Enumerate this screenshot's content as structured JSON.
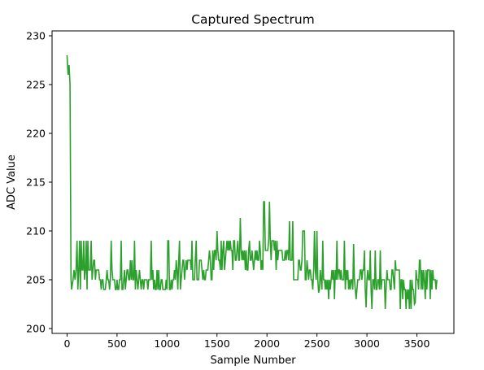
{
  "chart_data": {
    "type": "line",
    "title": "Captured Spectrum",
    "xlabel": "Sample Number",
    "ylabel": "ADC Value",
    "xlim": [
      -150,
      3870
    ],
    "ylim": [
      199.5,
      230.5
    ],
    "xticks": [
      0,
      500,
      1000,
      1500,
      2000,
      2500,
      3000,
      3500
    ],
    "yticks": [
      200,
      205,
      210,
      215,
      220,
      225,
      230
    ],
    "series": [
      {
        "color": "#2ca02c",
        "x": [
          0,
          10,
          20,
          30,
          40,
          45,
          60,
          80,
          100,
          150,
          200,
          250,
          300,
          350,
          400,
          450,
          500,
          550,
          600,
          650,
          700,
          750,
          800,
          850,
          900,
          950,
          1000,
          1050,
          1100,
          1150,
          1200,
          1250,
          1300,
          1350,
          1400,
          1450,
          1500,
          1550,
          1600,
          1650,
          1700,
          1750,
          1800,
          1850,
          1900,
          1950,
          2000,
          2050,
          2100,
          2150,
          2200,
          2250,
          2300,
          2350,
          2400,
          2450,
          2500,
          2550,
          2600,
          2650,
          2700,
          2750,
          2800,
          2850,
          2900,
          2950,
          3000,
          3050,
          3100,
          3150,
          3200,
          3250,
          3300,
          3350,
          3400,
          3450,
          3500,
          3550,
          3600,
          3650,
          3700
        ],
        "y": [
          228,
          226,
          227,
          225,
          205,
          204,
          205,
          205,
          205,
          205,
          205,
          206,
          206,
          205,
          205,
          205,
          205,
          205,
          205,
          206,
          205,
          205,
          205,
          205,
          205,
          205,
          205,
          205,
          206,
          206,
          206,
          206,
          206,
          206,
          206,
          207,
          207,
          208,
          208,
          208,
          208,
          208,
          208,
          208,
          208,
          208,
          209,
          208,
          208,
          208,
          207,
          207,
          206,
          206,
          206,
          205,
          205,
          205,
          205,
          205,
          205,
          205,
          205,
          205,
          205,
          205,
          205,
          205,
          205,
          205,
          205,
          205,
          205,
          204,
          204,
          205,
          205,
          205,
          205,
          205,
          205
        ],
        "envelope_high": [
          228,
          228,
          227,
          225,
          206,
          209,
          209,
          209,
          209,
          209,
          209,
          209,
          209,
          209,
          209,
          209,
          209,
          209,
          209,
          209,
          209,
          209,
          209,
          209,
          209,
          209,
          209,
          209,
          209,
          209,
          209,
          209,
          209,
          210,
          210,
          210,
          210,
          211,
          211,
          211,
          212,
          211,
          212,
          212,
          213,
          213,
          213,
          213,
          213,
          212,
          211,
          211,
          211,
          210,
          210,
          210,
          210,
          209,
          209,
          209,
          209,
          209,
          209,
          209,
          208,
          208,
          208,
          208,
          208,
          208,
          208,
          207,
          207,
          207,
          207,
          207,
          207,
          207,
          207,
          207,
          205
        ],
        "envelope_low": [
          226,
          226,
          226,
          224,
          204,
          204,
          204,
          204,
          204,
          204,
          204,
          204,
          204,
          204,
          204,
          204,
          204,
          204,
          204,
          204,
          204,
          204,
          204,
          204,
          204,
          204,
          204,
          204,
          204,
          204,
          204,
          205,
          205,
          205,
          205,
          205,
          205,
          206,
          206,
          206,
          206,
          206,
          206,
          206,
          206,
          206,
          206,
          206,
          206,
          206,
          205,
          205,
          205,
          204,
          204,
          204,
          204,
          203,
          203,
          203,
          203,
          203,
          203,
          203,
          203,
          203,
          202,
          202,
          202,
          202,
          202,
          202,
          202,
          202,
          202,
          202,
          203,
          203,
          203,
          203,
          204
        ]
      }
    ]
  }
}
